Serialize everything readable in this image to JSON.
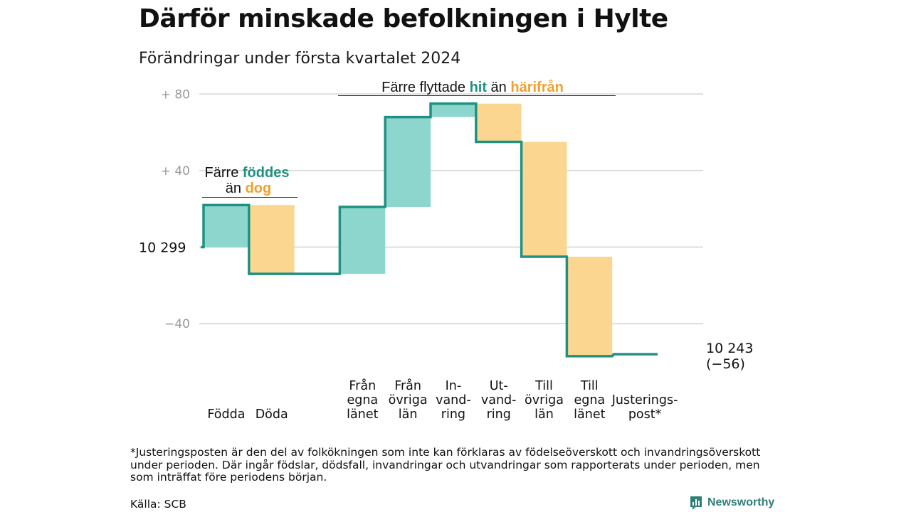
{
  "header": {
    "title": "Därför minskade befolkningen i Hylte",
    "subtitle": "Förändringar under första kvartalet 2024"
  },
  "footer": {
    "footnote": "*Justeringsposten är den del av folkökningen som inte kan förklaras av födelseöverskott och invandringsöverskott under perioden. Där ingår födslar, dödsfall, invandringar och utvandringar som rapporterats under perioden, men som inträffat före periodens början.",
    "source": "Källa: SCB",
    "brand": "Newsworthy"
  },
  "colors": {
    "increase": "#8dd6cd",
    "decrease": "#fad690",
    "line": "#1e9182",
    "increase_text": "#1e9182",
    "decrease_text": "#f0a02c",
    "grid": "#dddddd",
    "tick_text": "#999999"
  },
  "chart_data": {
    "type": "waterfall",
    "start_value": 10299,
    "end_value": 10243,
    "start_label": "10  299",
    "end_label": [
      "10 243",
      "(−56)"
    ],
    "ylim": [
      -57,
      80
    ],
    "yticks": [
      {
        "value": 80,
        "label": "+  80"
      },
      {
        "value": 40,
        "label": "+  40"
      },
      {
        "value": -40,
        "label": "−40"
      }
    ],
    "grid": true,
    "steps": [
      {
        "label": [
          "Födda"
        ],
        "change": 22
      },
      {
        "label": [
          "Döda"
        ],
        "change": -36
      },
      {
        "label": [],
        "change": 0
      },
      {
        "label": [
          "Från",
          "egna",
          "länet"
        ],
        "change": 35
      },
      {
        "label": [
          "Från",
          "övriga",
          "län"
        ],
        "change": 47
      },
      {
        "label": [
          "In-",
          "vand-",
          "ring"
        ],
        "change": 7
      },
      {
        "label": [
          "Ut-",
          "vand-",
          "ring"
        ],
        "change": -20
      },
      {
        "label": [
          "Till",
          "övriga",
          "län"
        ],
        "change": -60
      },
      {
        "label": [
          "Till",
          "egna",
          "länet"
        ],
        "change": -52
      },
      {
        "label": [
          "Justerings-",
          "post*"
        ],
        "change": 1
      }
    ],
    "annotations": [
      {
        "parts": [
          {
            "text": "Färre ",
            "style": "plain"
          },
          {
            "text": "föddes",
            "style": "increase"
          }
        ],
        "parts2": [
          {
            "text": "än ",
            "style": "plain"
          },
          {
            "text": "dog",
            "style": "decrease"
          }
        ]
      },
      {
        "parts": [
          {
            "text": "Färre flyttade ",
            "style": "plain"
          },
          {
            "text": "hit",
            "style": "increase"
          },
          {
            "text": " än ",
            "style": "plain"
          },
          {
            "text": "härifrån",
            "style": "decrease"
          }
        ]
      }
    ]
  }
}
